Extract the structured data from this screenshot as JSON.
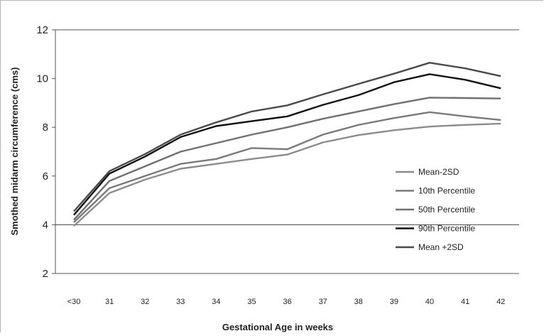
{
  "chart_data": {
    "type": "line",
    "title": "",
    "xlabel": "Gestational Age in weeks",
    "ylabel": "Smothed midarm circumference (cms)",
    "categories": [
      "<30",
      "31",
      "32",
      "33",
      "34",
      "35",
      "36",
      "37",
      "38",
      "39",
      "40",
      "41",
      "42"
    ],
    "ylim": [
      2,
      12
    ],
    "yticks": [
      "2",
      "4",
      "6",
      "8",
      "10",
      "12"
    ],
    "grid": "horizontal line at 4 only",
    "legend_position": "right",
    "series": [
      {
        "name": "Mean-2SD",
        "color": "#8c8c8c",
        "values": [
          3.95,
          5.3,
          5.85,
          6.3,
          6.5,
          6.7,
          6.88,
          7.38,
          7.68,
          7.88,
          8.03,
          8.1,
          8.15
        ]
      },
      {
        "name": "10th Percentile",
        "color": "#7a7a7a",
        "values": [
          4.1,
          5.5,
          6.0,
          6.5,
          6.7,
          7.15,
          7.1,
          7.7,
          8.1,
          8.38,
          8.62,
          8.45,
          8.3
        ]
      },
      {
        "name": "50th Percentile",
        "color": "#707070",
        "values": [
          4.2,
          5.8,
          6.4,
          7.0,
          7.35,
          7.7,
          8.0,
          8.35,
          8.65,
          8.95,
          9.22,
          9.2,
          9.18
        ]
      },
      {
        "name": "90th Percentile",
        "color": "#111111",
        "values": [
          4.4,
          6.1,
          6.8,
          7.6,
          8.05,
          8.25,
          8.45,
          8.92,
          9.32,
          9.85,
          10.18,
          9.95,
          9.6
        ]
      },
      {
        "name": "Mean +2SD",
        "color": "#4a4a4a",
        "values": [
          4.55,
          6.2,
          6.9,
          7.7,
          8.2,
          8.65,
          8.9,
          9.35,
          9.78,
          10.2,
          10.65,
          10.42,
          10.1
        ]
      }
    ]
  }
}
